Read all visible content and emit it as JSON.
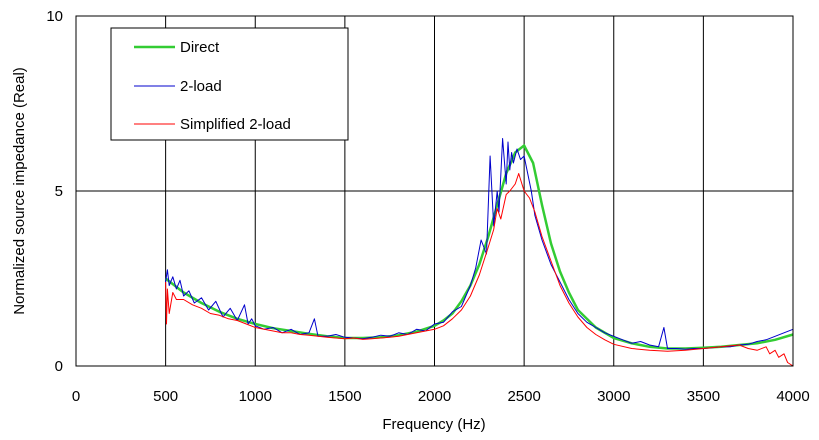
{
  "chart_data": {
    "type": "line",
    "xlabel": "Frequency (Hz)",
    "ylabel": "Normalized source impedance (Real)",
    "xlim": [
      0,
      4000
    ],
    "ylim": [
      0,
      10
    ],
    "x_ticks": [
      0,
      500,
      1000,
      1500,
      2000,
      2500,
      3000,
      3500,
      4000
    ],
    "y_ticks": [
      0,
      5,
      10
    ],
    "grid": true,
    "legend_position": "top-left",
    "series": [
      {
        "name": "Direct",
        "color": "#33cc33",
        "x": [
          500,
          600,
          700,
          800,
          900,
          1000,
          1100,
          1200,
          1300,
          1400,
          1500,
          1600,
          1700,
          1800,
          1900,
          2000,
          2050,
          2100,
          2150,
          2200,
          2250,
          2300,
          2350,
          2400,
          2450,
          2500,
          2550,
          2600,
          2650,
          2700,
          2750,
          2800,
          2900,
          3000,
          3100,
          3200,
          3300,
          3400,
          3500,
          3600,
          3700,
          3800,
          3900,
          4000
        ],
        "y": [
          2.5,
          2.1,
          1.8,
          1.55,
          1.35,
          1.2,
          1.08,
          1.0,
          0.92,
          0.85,
          0.8,
          0.8,
          0.82,
          0.88,
          0.98,
          1.15,
          1.3,
          1.5,
          1.85,
          2.3,
          2.9,
          3.7,
          4.6,
          5.5,
          6.1,
          6.3,
          5.8,
          4.6,
          3.5,
          2.7,
          2.1,
          1.6,
          1.1,
          0.8,
          0.65,
          0.55,
          0.5,
          0.5,
          0.52,
          0.55,
          0.6,
          0.65,
          0.75,
          0.9
        ]
      },
      {
        "name": "2-load",
        "color": "#0000cc",
        "x": [
          500,
          510,
          520,
          540,
          560,
          580,
          600,
          630,
          660,
          700,
          740,
          780,
          820,
          860,
          900,
          940,
          960,
          980,
          1000,
          1050,
          1100,
          1150,
          1200,
          1250,
          1300,
          1330,
          1350,
          1400,
          1450,
          1500,
          1550,
          1600,
          1650,
          1700,
          1750,
          1800,
          1850,
          1900,
          1950,
          2000,
          2050,
          2100,
          2150,
          2200,
          2230,
          2260,
          2290,
          2310,
          2330,
          2350,
          2360,
          2380,
          2400,
          2410,
          2420,
          2430,
          2440,
          2460,
          2480,
          2500,
          2520,
          2540,
          2560,
          2600,
          2650,
          2700,
          2750,
          2800,
          2850,
          2900,
          2950,
          3000,
          3050,
          3100,
          3150,
          3200,
          3250,
          3280,
          3300,
          3350,
          3400,
          3450,
          3500,
          3550,
          3600,
          3650,
          3700,
          3750,
          3800,
          3850,
          3900,
          3950,
          4000
        ],
        "y": [
          2.4,
          2.75,
          2.3,
          2.55,
          2.2,
          2.45,
          2.0,
          2.15,
          1.8,
          1.95,
          1.6,
          1.85,
          1.4,
          1.65,
          1.3,
          1.75,
          1.2,
          1.35,
          1.15,
          1.05,
          1.1,
          0.95,
          1.05,
          0.9,
          0.95,
          1.35,
          0.85,
          0.85,
          0.9,
          0.82,
          0.8,
          0.78,
          0.82,
          0.88,
          0.85,
          0.95,
          0.9,
          1.05,
          1.0,
          1.2,
          1.25,
          1.55,
          1.7,
          2.3,
          2.8,
          3.6,
          3.2,
          6.0,
          4.0,
          5.0,
          4.4,
          6.5,
          5.2,
          6.4,
          5.6,
          6.1,
          5.8,
          6.2,
          5.9,
          6.0,
          5.5,
          5.0,
          4.3,
          3.6,
          2.9,
          2.4,
          1.9,
          1.5,
          1.25,
          1.1,
          0.95,
          0.85,
          0.75,
          0.65,
          0.7,
          0.6,
          0.55,
          1.1,
          0.5,
          0.5,
          0.48,
          0.5,
          0.5,
          0.52,
          0.55,
          0.55,
          0.6,
          0.62,
          0.7,
          0.75,
          0.85,
          0.95,
          1.05
        ]
      },
      {
        "name": "Simplified 2-load",
        "color": "#ff0000",
        "x": [
          500,
          505,
          510,
          520,
          540,
          560,
          600,
          650,
          700,
          750,
          800,
          850,
          900,
          950,
          1000,
          1050,
          1100,
          1150,
          1200,
          1250,
          1300,
          1350,
          1400,
          1450,
          1500,
          1550,
          1600,
          1650,
          1700,
          1750,
          1800,
          1850,
          1900,
          1950,
          2000,
          2050,
          2100,
          2150,
          2200,
          2250,
          2300,
          2330,
          2350,
          2370,
          2400,
          2420,
          2450,
          2470,
          2500,
          2530,
          2560,
          2600,
          2650,
          2700,
          2750,
          2800,
          2850,
          2900,
          2950,
          3000,
          3100,
          3200,
          3300,
          3400,
          3500,
          3600,
          3700,
          3750,
          3800,
          3850,
          3870,
          3900,
          3920,
          3950,
          3970,
          4000
        ],
        "y": [
          2.4,
          1.2,
          2.2,
          1.5,
          2.1,
          1.9,
          1.9,
          1.75,
          1.65,
          1.5,
          1.45,
          1.35,
          1.3,
          1.2,
          1.1,
          1.05,
          1.0,
          0.95,
          0.95,
          0.9,
          0.88,
          0.85,
          0.82,
          0.8,
          0.78,
          0.8,
          0.76,
          0.78,
          0.8,
          0.82,
          0.85,
          0.9,
          0.95,
          1.0,
          1.05,
          1.15,
          1.35,
          1.6,
          2.0,
          2.6,
          3.4,
          3.9,
          4.5,
          4.2,
          4.9,
          5.0,
          5.2,
          5.5,
          5.0,
          4.8,
          4.4,
          3.7,
          3.0,
          2.3,
          1.8,
          1.4,
          1.1,
          0.9,
          0.75,
          0.62,
          0.5,
          0.45,
          0.42,
          0.45,
          0.5,
          0.55,
          0.6,
          0.5,
          0.45,
          0.55,
          0.35,
          0.45,
          0.25,
          0.35,
          0.1,
          0.0
        ]
      }
    ]
  }
}
